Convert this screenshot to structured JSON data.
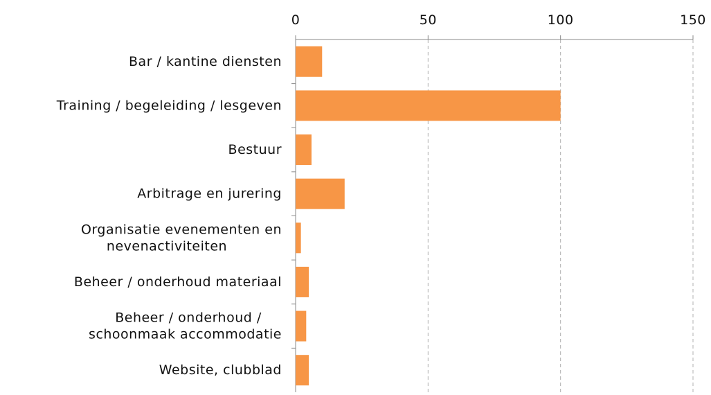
{
  "chart_data": {
    "type": "bar",
    "orientation": "horizontal",
    "categories": [
      "Bar / kantine diensten",
      "Training / begeleiding / lesgeven",
      "Bestuur",
      "Arbitrage en jurering",
      "Organisatie evenementen en\nnevenactiviteiten",
      "Beheer / onderhoud materiaal",
      "Beheer / onderhoud /\nschoonmaak accommodatie",
      "Website, clubblad"
    ],
    "values": [
      10,
      100,
      6,
      18.5,
      2,
      5,
      4,
      5
    ],
    "color": "#f79646",
    "xlim": [
      0,
      150
    ],
    "xticks": [
      0,
      50,
      100,
      150
    ],
    "grid": true
  }
}
